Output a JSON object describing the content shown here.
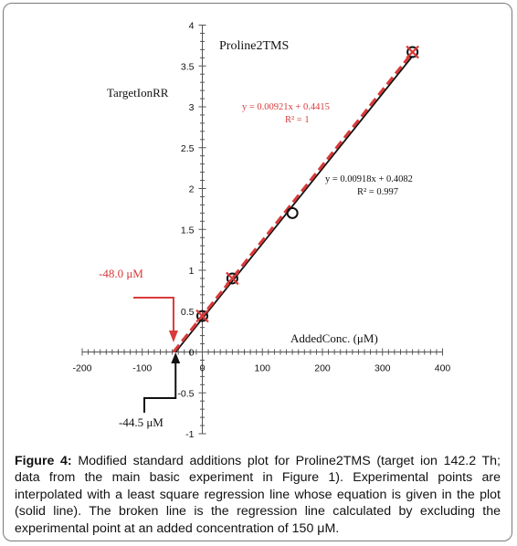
{
  "chart_data": {
    "type": "scatter",
    "title": "Proline2TMS",
    "xlabel": "AddedConc. (μM)",
    "ylabel": "TargetIonRR",
    "xlim": [
      -200,
      400
    ],
    "ylim": [
      -1,
      4
    ],
    "x_ticks": [
      -200,
      -100,
      0,
      100,
      200,
      300,
      400
    ],
    "x_tick_labels": [
      "-200",
      "-100",
      "0",
      "100",
      "200",
      "300",
      "400"
    ],
    "y_ticks": [
      -1,
      -0.5,
      0,
      0.5,
      1,
      1.5,
      2,
      2.5,
      3,
      3.5,
      4
    ],
    "y_tick_labels": [
      "-1",
      "-0.5",
      "0",
      "0.5",
      "1",
      "1.5",
      "2",
      "2.5",
      "3",
      "3.5",
      "4"
    ],
    "points": [
      {
        "x": 0,
        "y": 0.44
      },
      {
        "x": 50,
        "y": 0.9
      },
      {
        "x": 150,
        "y": 1.7
      },
      {
        "x": 350,
        "y": 3.67
      }
    ],
    "series": [
      {
        "slope": 0.00918,
        "intercept": 0.4082,
        "x_range": [
          -44.5,
          350
        ],
        "equation": "y = 0.00918x + 0.4082",
        "r2": "R² = 0.997",
        "color": "#111111",
        "style": "solid"
      },
      {
        "slope": 0.00921,
        "intercept": 0.4415,
        "x_range": [
          -48.0,
          350
        ],
        "equation": "y = 0.00921x + 0.4415",
        "r2": "R² = 1",
        "color": "#d93a3a",
        "style": "dashed"
      }
    ],
    "annotations": [
      {
        "text": "-48.0 μM",
        "x": -48.0,
        "color": "#d93a3a"
      },
      {
        "text": "-44.5 μM",
        "x": -44.5,
        "color": "#111111"
      }
    ],
    "excluded_point_x": 150
  },
  "caption": {
    "label": "Figure 4:",
    "text": "Modified standard additions plot for Proline2TMS (target ion 142.2 Th; data from the main basic experiment in Figure 1). Experimental points are interpolated with a least square regression line whose equation is given in the plot (solid line). The broken line is the regression line calculated by excluding the experimental point at an added concentration of 150 μM."
  },
  "colors": {
    "red": "#d93a3a",
    "black": "#111111",
    "axis": "#555555"
  }
}
